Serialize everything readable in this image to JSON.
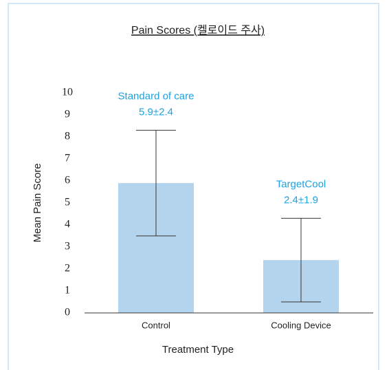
{
  "chart_data": {
    "type": "bar",
    "title": "Pain Scores (켈로이드 주사)",
    "categories": [
      "Control",
      "Cooling Device"
    ],
    "values": [
      5.9,
      2.4
    ],
    "errors": [
      2.4,
      1.9
    ],
    "value_labels": [
      "5.9±2.4",
      "2.4±1.9"
    ],
    "annotations": [
      "Standard of care",
      "TargetCool"
    ],
    "color": "#b4d4ee",
    "annotation_color": "#1ba3e2",
    "xlabel": "Treatment Type",
    "ylabel": "Mean Pain Score",
    "ylim": [
      0,
      10
    ],
    "yticks": [
      0,
      1,
      2,
      3,
      4,
      5,
      6,
      7,
      8,
      9,
      10
    ],
    "grid": false
  }
}
